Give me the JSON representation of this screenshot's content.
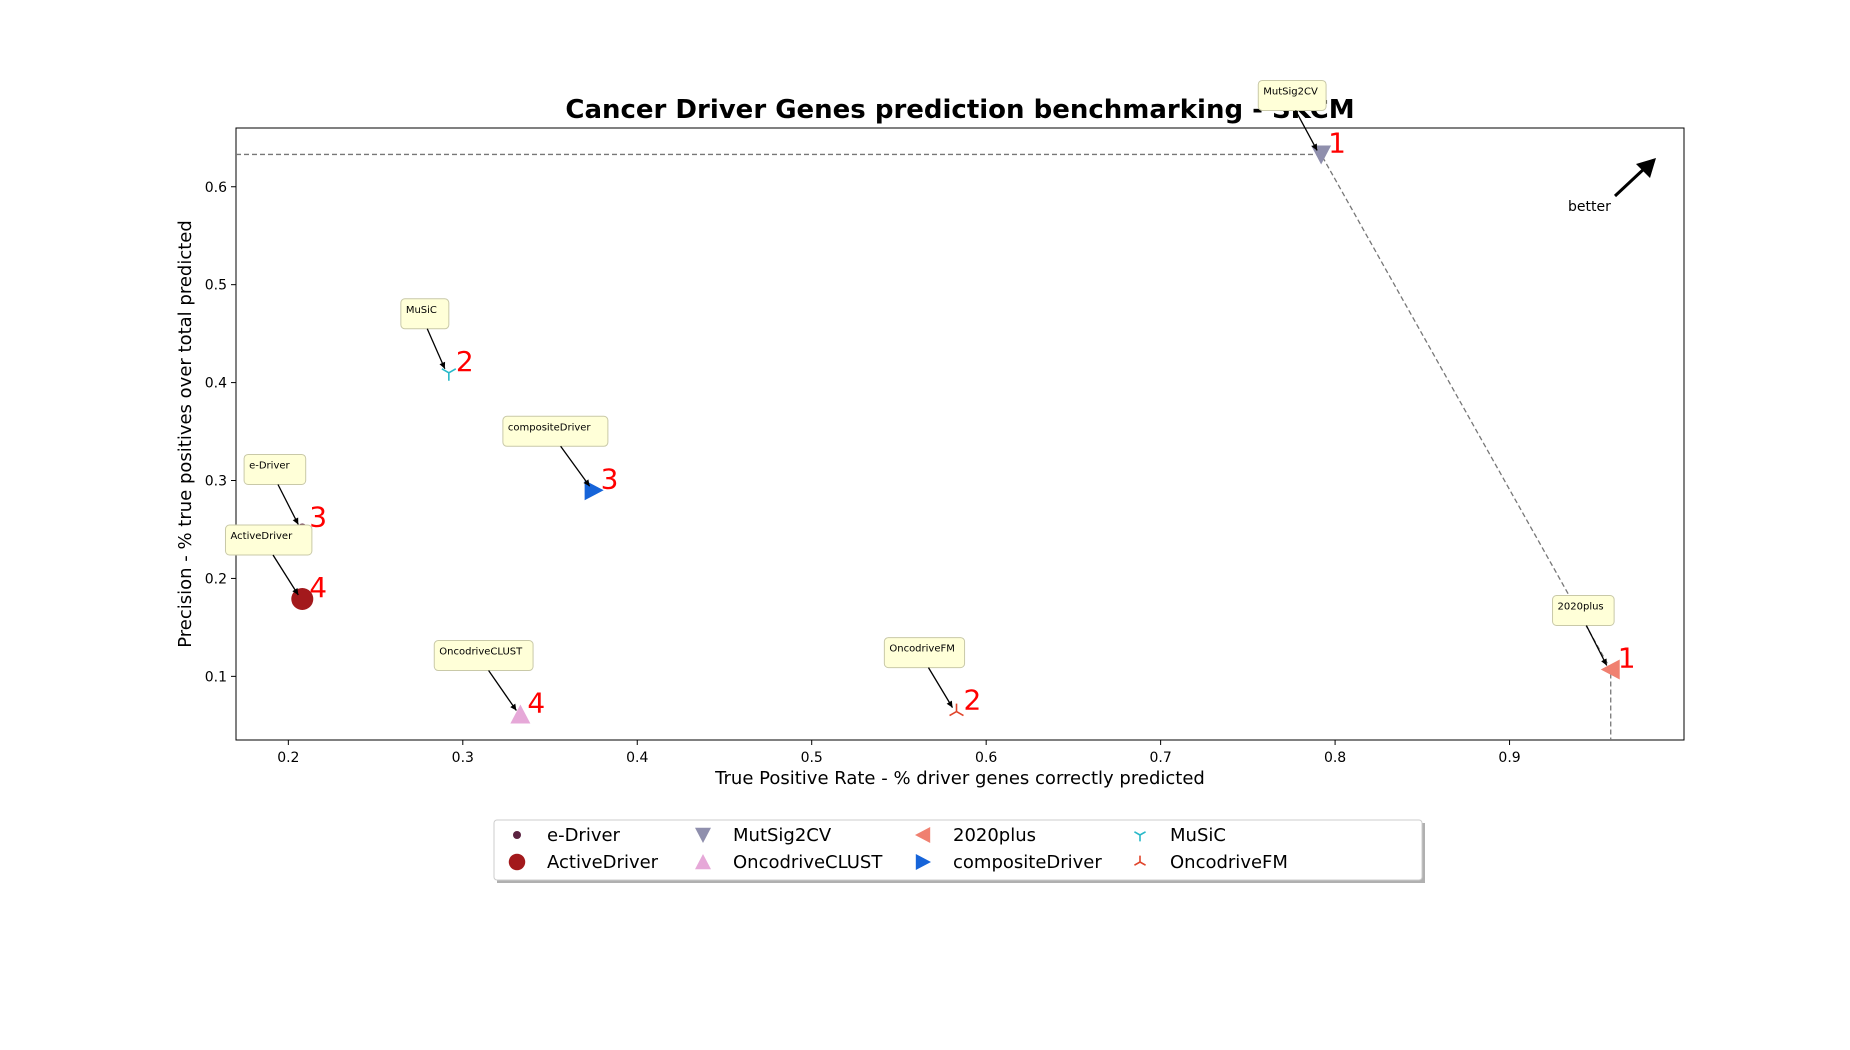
{
  "chart_data": {
    "type": "scatter",
    "title": "Cancer Driver Genes prediction benchmarking - SKCM",
    "xlabel": "True Positive Rate - % driver genes correctly predicted",
    "ylabel": "Precision - % true positives over total predicted",
    "xlim": [
      0.17,
      1.0
    ],
    "ylim": [
      0.035,
      0.66
    ],
    "xticks": [
      "0.2",
      "0.3",
      "0.4",
      "0.5",
      "0.6",
      "0.7",
      "0.8",
      "0.9"
    ],
    "yticks": [
      "0.1",
      "0.2",
      "0.3",
      "0.4",
      "0.5",
      "0.6"
    ],
    "grid": false,
    "legend_position": "bottom-center",
    "series": [
      {
        "name": "e-Driver",
        "x": 0.208,
        "y": 0.251,
        "rank": "3",
        "marker": "dot",
        "color": "#5b2340"
      },
      {
        "name": "ActiveDriver",
        "x": 0.208,
        "y": 0.179,
        "rank": "4",
        "marker": "circle-large",
        "color": "#a3191c"
      },
      {
        "name": "MutSig2CV",
        "x": 0.792,
        "y": 0.633,
        "rank": "1",
        "marker": "triangle-down",
        "color": "#8f8fad"
      },
      {
        "name": "OncodriveCLUST",
        "x": 0.333,
        "y": 0.061,
        "rank": "4",
        "marker": "triangle-up",
        "color": "#e6a8d8"
      },
      {
        "name": "2020plus",
        "x": 0.958,
        "y": 0.107,
        "rank": "1",
        "marker": "triangle-left",
        "color": "#f08070"
      },
      {
        "name": "compositeDriver",
        "x": 0.375,
        "y": 0.29,
        "rank": "3",
        "marker": "triangle-right",
        "color": "#1664d9"
      },
      {
        "name": "MuSiC",
        "x": 0.292,
        "y": 0.41,
        "rank": "2",
        "marker": "tri-down",
        "color": "#29b9c9"
      },
      {
        "name": "OncodriveFM",
        "x": 0.583,
        "y": 0.064,
        "rank": "2",
        "marker": "tri-up",
        "color": "#e0442b"
      }
    ],
    "pareto_front": [
      "MutSig2CV",
      "2020plus"
    ],
    "annotation": "better"
  }
}
